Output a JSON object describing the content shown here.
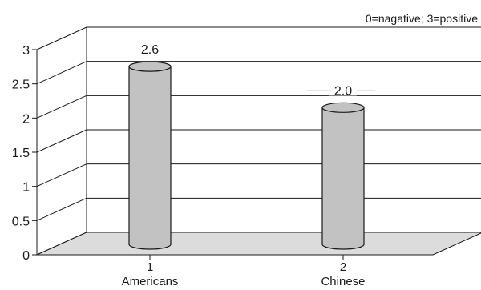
{
  "chart_data": {
    "type": "bar",
    "style": "3d-cylinder",
    "note": "0=nagative; 3=positive",
    "categories": [
      {
        "index": "1",
        "name": "Americans"
      },
      {
        "index": "2",
        "name": "Chinese"
      }
    ],
    "values": [
      2.6,
      2.0
    ],
    "value_labels": [
      "2.6",
      "2.0"
    ],
    "ylim": [
      0,
      3
    ],
    "yticks": [
      "0",
      "0.5",
      "1",
      "1.5",
      "2",
      "2.5",
      "3"
    ],
    "grid": true,
    "colors": {
      "bar": "#c2c2c2",
      "floor": "#dcdcdc",
      "axis": "#1a1a1a"
    }
  }
}
